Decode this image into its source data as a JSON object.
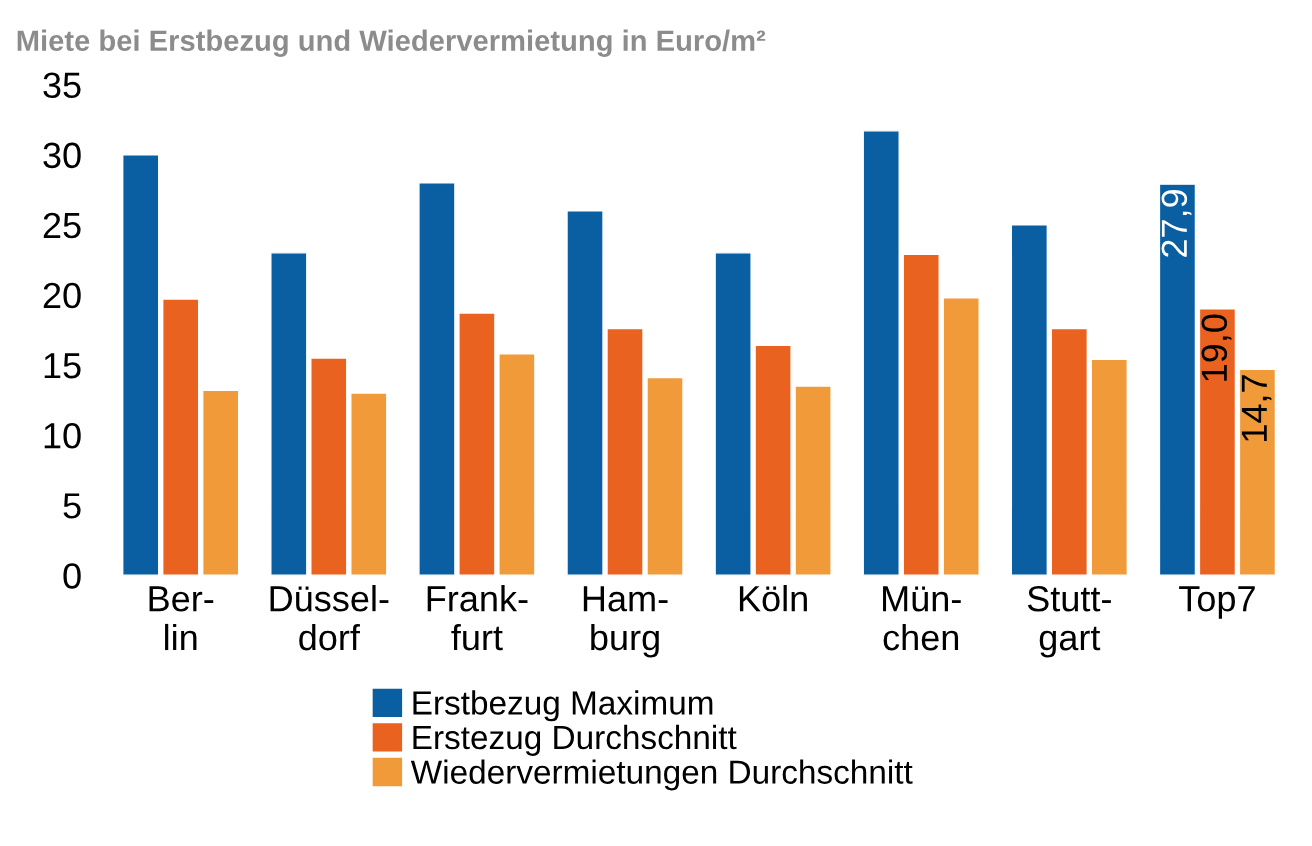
{
  "chart_data": {
    "type": "bar",
    "title": "Miete bei Erstbezug und Wiedervermietung in Euro/m²",
    "categories": [
      "Ber-\nlin",
      "Düssel-\ndorf",
      "Frank-\nfurt",
      "Ham-\nburg",
      "Köln",
      "Mün-\nchen",
      "Stutt-\ngart",
      "Top7"
    ],
    "series": [
      {
        "name": "Erstbezug Maximum",
        "color": "#0a5fa3",
        "values": [
          30.0,
          23.0,
          28.0,
          26.0,
          23.0,
          31.7,
          25.0,
          27.9
        ],
        "value_labels": [
          null,
          null,
          null,
          null,
          null,
          null,
          null,
          "27,9"
        ]
      },
      {
        "name": "Erstezug Durchschnitt",
        "color": "#e9621f",
        "values": [
          19.7,
          15.5,
          18.7,
          17.6,
          16.4,
          22.9,
          17.6,
          19.0
        ],
        "value_labels": [
          null,
          null,
          null,
          null,
          null,
          null,
          null,
          "19,0"
        ]
      },
      {
        "name": "Wiedervermietungen Durchschnitt",
        "color": "#f09a3a",
        "values": [
          13.2,
          13.0,
          15.8,
          14.1,
          13.5,
          19.8,
          15.4,
          14.7
        ],
        "value_labels": [
          null,
          null,
          null,
          null,
          null,
          null,
          null,
          "14,7"
        ]
      }
    ],
    "ylim": [
      0,
      35
    ],
    "yticks": [
      0,
      5,
      10,
      15,
      20,
      25,
      30,
      35
    ],
    "grid": false,
    "legend": "bottom"
  }
}
